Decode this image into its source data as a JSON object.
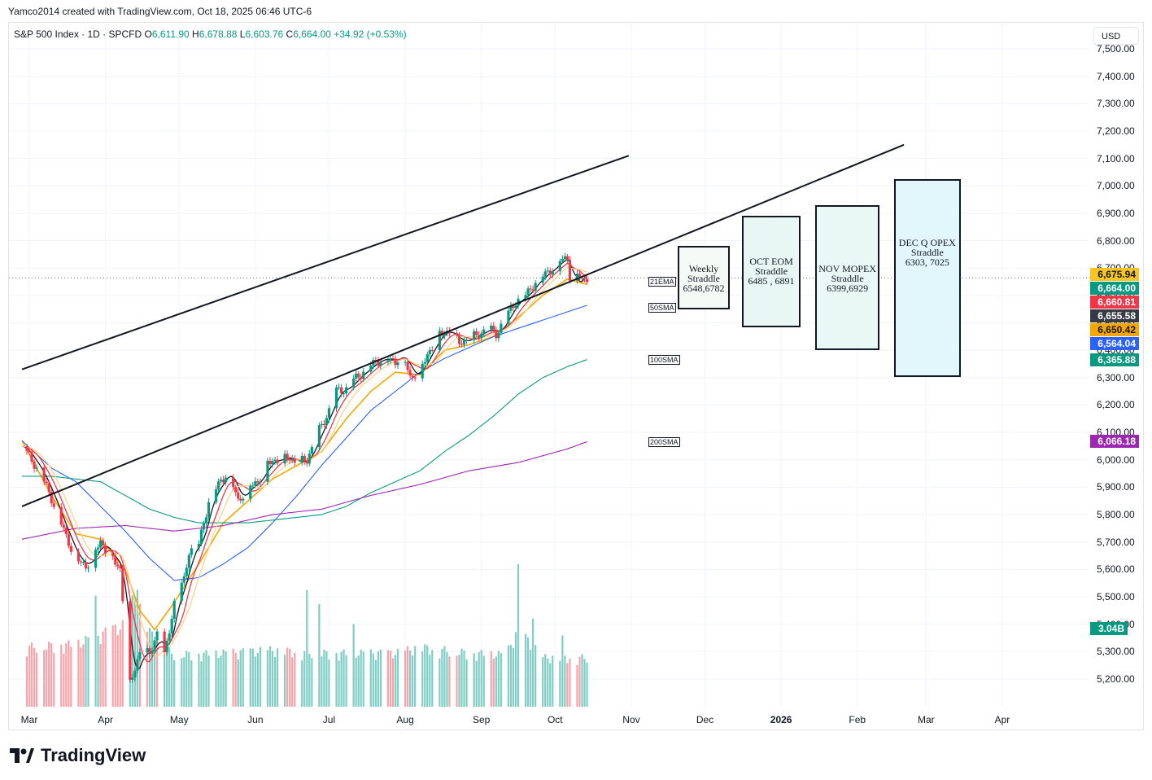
{
  "header": {
    "created_line": "Yamco2014 created with TradingView.com, Oct 18, 2025 06:46 UTC-6"
  },
  "legend": {
    "symbol": "S&P 500 Index · 1D · SPCFD",
    "o_label": "O",
    "o": "6,611.90",
    "h_label": "H",
    "h": "6,678.88",
    "l_label": "L",
    "l": "6,603.76",
    "c_label": "C",
    "c": "6,664.00",
    "change": "+34.92 (+0.53%)"
  },
  "currency": "USD",
  "brand": "TradingView",
  "colors": {
    "up": "#089981",
    "down": "#f23645",
    "ema21": "#f7a600",
    "sma50": "#2962ff",
    "sma100": "#089981",
    "sma200": "#9c27b0",
    "vol_up": "#7fcdc4",
    "vol_down": "#f6a3aa"
  },
  "chart_data": {
    "type": "candlestick",
    "title": "S&P 500 Index · 1D · SPCFD",
    "ylabel": "USD",
    "ylim": [
      5130,
      7520
    ],
    "y_ticks": [
      "7,500.00",
      "7,400.00",
      "7,300.00",
      "7,200.00",
      "7,100.00",
      "7,000.00",
      "6,900.00",
      "6,800.00",
      "6,700.00",
      "6,600.00",
      "6,500.00",
      "6,400.00",
      "6,300.00",
      "6,200.00",
      "6,100.00",
      "6,000.00",
      "5,900.00",
      "5,800.00",
      "5,700.00",
      "5,600.00",
      "5,500.00",
      "5,400.00",
      "5,300.00",
      "5,200.00"
    ],
    "y_tick_values": [
      7500,
      7400,
      7300,
      7200,
      7100,
      7000,
      6900,
      6800,
      6700,
      6600,
      6500,
      6400,
      6300,
      6200,
      6100,
      6000,
      5900,
      5800,
      5700,
      5600,
      5500,
      5400,
      5300,
      5200
    ],
    "x_ticks": [
      {
        "label": "Mar",
        "day": 1
      },
      {
        "label": "Apr",
        "day": 32
      },
      {
        "label": "May",
        "day": 62
      },
      {
        "label": "Jun",
        "day": 93
      },
      {
        "label": "Jul",
        "day": 123
      },
      {
        "label": "Aug",
        "day": 154
      },
      {
        "label": "Sep",
        "day": 185
      },
      {
        "label": "Oct",
        "day": 215
      },
      {
        "label": "Nov",
        "day": 246
      },
      {
        "label": "Dec",
        "day": 276
      },
      {
        "label": "2026",
        "day": 307
      },
      {
        "label": "Feb",
        "day": 338
      },
      {
        "label": "Mar",
        "day": 366
      },
      {
        "label": "Apr",
        "day": 397
      }
    ],
    "price_anchors": [
      [
        -2,
        6050
      ],
      [
        5,
        5960
      ],
      [
        10,
        5860
      ],
      [
        16,
        5720
      ],
      [
        20,
        5640
      ],
      [
        24,
        5610
      ],
      [
        30,
        5700
      ],
      [
        34,
        5650
      ],
      [
        38,
        5600
      ],
      [
        42,
        5180
      ],
      [
        46,
        5300
      ],
      [
        50,
        5290
      ],
      [
        53,
        5370
      ],
      [
        56,
        5280
      ],
      [
        60,
        5480
      ],
      [
        64,
        5560
      ],
      [
        66,
        5670
      ],
      [
        70,
        5690
      ],
      [
        74,
        5850
      ],
      [
        78,
        5910
      ],
      [
        82,
        5960
      ],
      [
        86,
        5850
      ],
      [
        90,
        5900
      ],
      [
        94,
        5920
      ],
      [
        98,
        5990
      ],
      [
        102,
        6000
      ],
      [
        106,
        6010
      ],
      [
        110,
        5990
      ],
      [
        114,
        6000
      ],
      [
        118,
        6090
      ],
      [
        122,
        6160
      ],
      [
        126,
        6250
      ],
      [
        130,
        6260
      ],
      [
        134,
        6300
      ],
      [
        138,
        6330
      ],
      [
        142,
        6360
      ],
      [
        146,
        6370
      ],
      [
        150,
        6360
      ],
      [
        153,
        6390
      ],
      [
        156,
        6300
      ],
      [
        160,
        6330
      ],
      [
        164,
        6400
      ],
      [
        168,
        6460
      ],
      [
        172,
        6470
      ],
      [
        176,
        6430
      ],
      [
        180,
        6440
      ],
      [
        184,
        6460
      ],
      [
        188,
        6480
      ],
      [
        191,
        6460
      ],
      [
        195,
        6520
      ],
      [
        199,
        6580
      ],
      [
        203,
        6600
      ],
      [
        207,
        6650
      ],
      [
        211,
        6680
      ],
      [
        214,
        6700
      ],
      [
        217,
        6730
      ],
      [
        220,
        6740
      ],
      [
        222,
        6600
      ],
      [
        224,
        6680
      ],
      [
        226,
        6660
      ],
      [
        228,
        6664
      ]
    ],
    "moving_averages": [
      {
        "name": "21EMA",
        "anchors": [
          [
            -2,
            6070
          ],
          [
            10,
            5870
          ],
          [
            20,
            5730
          ],
          [
            30,
            5710
          ],
          [
            40,
            5600
          ],
          [
            46,
            5450
          ],
          [
            52,
            5380
          ],
          [
            60,
            5480
          ],
          [
            70,
            5620
          ],
          [
            80,
            5770
          ],
          [
            90,
            5850
          ],
          [
            100,
            5930
          ],
          [
            110,
            5980
          ],
          [
            120,
            6030
          ],
          [
            130,
            6150
          ],
          [
            140,
            6250
          ],
          [
            150,
            6320
          ],
          [
            160,
            6310
          ],
          [
            170,
            6400
          ],
          [
            180,
            6420
          ],
          [
            190,
            6450
          ],
          [
            200,
            6520
          ],
          [
            210,
            6600
          ],
          [
            220,
            6660
          ],
          [
            228,
            6640
          ]
        ]
      },
      {
        "name": "50SMA",
        "anchors": [
          [
            -2,
            6070
          ],
          [
            10,
            5970
          ],
          [
            20,
            5920
          ],
          [
            30,
            5830
          ],
          [
            40,
            5740
          ],
          [
            50,
            5640
          ],
          [
            60,
            5560
          ],
          [
            70,
            5570
          ],
          [
            80,
            5620
          ],
          [
            90,
            5680
          ],
          [
            100,
            5770
          ],
          [
            110,
            5870
          ],
          [
            120,
            5980
          ],
          [
            130,
            6080
          ],
          [
            140,
            6180
          ],
          [
            150,
            6250
          ],
          [
            160,
            6320
          ],
          [
            170,
            6370
          ],
          [
            180,
            6410
          ],
          [
            190,
            6450
          ],
          [
            200,
            6480
          ],
          [
            210,
            6510
          ],
          [
            220,
            6540
          ],
          [
            228,
            6564
          ]
        ]
      },
      {
        "name": "100SMA",
        "anchors": [
          [
            -2,
            5940
          ],
          [
            10,
            5940
          ],
          [
            20,
            5930
          ],
          [
            30,
            5920
          ],
          [
            40,
            5870
          ],
          [
            50,
            5820
          ],
          [
            60,
            5790
          ],
          [
            70,
            5770
          ],
          [
            80,
            5770
          ],
          [
            90,
            5770
          ],
          [
            100,
            5780
          ],
          [
            110,
            5790
          ],
          [
            120,
            5800
          ],
          [
            130,
            5830
          ],
          [
            140,
            5880
          ],
          [
            150,
            5920
          ],
          [
            160,
            5960
          ],
          [
            170,
            6030
          ],
          [
            180,
            6090
          ],
          [
            190,
            6160
          ],
          [
            200,
            6240
          ],
          [
            210,
            6300
          ],
          [
            220,
            6340
          ],
          [
            228,
            6366
          ]
        ]
      },
      {
        "name": "200SMA",
        "anchors": [
          [
            -2,
            5710
          ],
          [
            20,
            5750
          ],
          [
            40,
            5760
          ],
          [
            60,
            5740
          ],
          [
            80,
            5760
          ],
          [
            100,
            5800
          ],
          [
            120,
            5820
          ],
          [
            140,
            5870
          ],
          [
            160,
            5910
          ],
          [
            180,
            5960
          ],
          [
            200,
            5990
          ],
          [
            220,
            6040
          ],
          [
            228,
            6066
          ]
        ]
      }
    ],
    "trend_lines": [
      {
        "name": "upper-channel",
        "from": {
          "day": -2,
          "price": 6330
        },
        "to": {
          "day": 245,
          "price": 7110
        }
      },
      {
        "name": "lower-channel",
        "from": {
          "day": -2,
          "price": 5830
        },
        "to": {
          "day": 357,
          "price": 7150
        }
      }
    ],
    "ma_labels": [
      "21EMA",
      "50SMA",
      "100SMA",
      "200SMA"
    ],
    "straddle_boxes": [
      {
        "title": "Weekly",
        "line2": "Straddle",
        "range": "6548,6782",
        "low": 6548,
        "high": 6782,
        "day_from": 265,
        "day_to": 286
      },
      {
        "title": "OCT EOM",
        "line2": "Straddle",
        "range": "6485 , 6891",
        "low": 6485,
        "high": 6891,
        "day_from": 291,
        "day_to": 315
      },
      {
        "title": "NOV MOPEX",
        "line2": "Straddle",
        "range": "6399,6929",
        "low": 6399,
        "high": 6929,
        "day_from": 321,
        "day_to": 347
      },
      {
        "title": "DEC Q OPEX",
        "line2": "Straddle",
        "range": "6303, 7025",
        "low": 6303,
        "high": 7025,
        "day_from": 353,
        "day_to": 380
      }
    ],
    "price_labels": [
      {
        "text": "6,675.94",
        "price": 6675.94,
        "bg": "#f7c51f",
        "fg": "#131722"
      },
      {
        "text": "6,664.00",
        "price": 6664.0,
        "bg": "#089981",
        "fg": "#ffffff"
      },
      {
        "text": "6,660.81",
        "price": 6660.81,
        "bg": "#f23645",
        "fg": "#ffffff"
      },
      {
        "text": "6,655.58",
        "price": 6655.58,
        "bg": "#363a45",
        "fg": "#ffffff"
      },
      {
        "text": "6,650.42",
        "price": 6650.42,
        "bg": "#f7a600",
        "fg": "#131722"
      },
      {
        "text": "6,564.04",
        "price": 6564.04,
        "bg": "#2962ff",
        "fg": "#ffffff"
      },
      {
        "text": "6,365.88",
        "price": 6365.88,
        "bg": "#089981",
        "fg": "#ffffff"
      },
      {
        "text": "6,066.18",
        "price": 6066.18,
        "bg": "#9c27b0",
        "fg": "#ffffff"
      }
    ],
    "volume_label": "3.04B",
    "volume_anchors": [
      [
        -2,
        0.4
      ],
      [
        20,
        0.42
      ],
      [
        40,
        0.55
      ],
      [
        44,
        0.75
      ],
      [
        50,
        0.5
      ],
      [
        60,
        0.35
      ],
      [
        80,
        0.36
      ],
      [
        100,
        0.38
      ],
      [
        120,
        0.36
      ],
      [
        150,
        0.36
      ],
      [
        160,
        0.4
      ],
      [
        180,
        0.36
      ],
      [
        195,
        0.35
      ],
      [
        200,
        0.52
      ],
      [
        210,
        0.33
      ],
      [
        228,
        0.33
      ]
    ],
    "volume_spikes": [
      [
        19,
        0.72
      ],
      [
        28,
        0.78
      ],
      [
        41,
        0.8
      ],
      [
        45,
        0.82
      ],
      [
        114,
        0.82
      ],
      [
        119,
        0.72
      ],
      [
        133,
        0.58
      ],
      [
        159,
        0.55
      ],
      [
        200,
        1.0
      ],
      [
        206,
        0.62
      ],
      [
        218,
        0.5
      ],
      [
        222,
        0.48
      ]
    ]
  }
}
